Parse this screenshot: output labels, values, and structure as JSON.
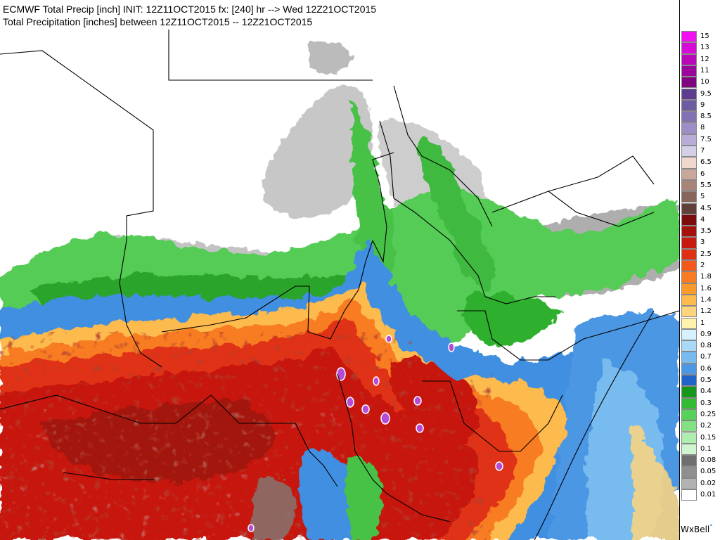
{
  "header": {
    "title_line_1": "ECMWF Total Precip [inch] INIT: 12Z11OCT2015 fx: [240] hr --> Wed 12Z21OCT2015",
    "title_line_2": "Total Precipitation [inches] between 12Z11OCT2015 -- 12Z21OCT2015"
  },
  "map": {
    "region": "East Africa / Horn of Africa",
    "colors": {
      "land_white": "#ffffff",
      "border": "#000000",
      "trace_gray_light": "#d7d7d7",
      "trace_gray": "#a9a9a9",
      "trace_gray_dark": "#7b7b7b",
      "green_light": "#9be39b",
      "green": "#46c846",
      "green_dark": "#1f9a1f",
      "blue_dark": "#1f63c8",
      "blue": "#3f8fe0",
      "blue_light": "#82c0f0",
      "cyan_light": "#c8ecff",
      "yellow_light": "#fff2a8",
      "yellow": "#ffd07a",
      "orange": "#ff9b2a",
      "orange_red": "#f2601e",
      "red": "#db2a14",
      "red_dark": "#b41208",
      "maroon": "#8e1a16",
      "brown_gray": "#8a6f6a",
      "purple": "#b54bd6"
    }
  },
  "legend": {
    "items": [
      {
        "label": "15",
        "color": "#f010f0"
      },
      {
        "label": "13",
        "color": "#d60bd6"
      },
      {
        "label": "12",
        "color": "#b808b8"
      },
      {
        "label": "11",
        "color": "#9a069a"
      },
      {
        "label": "10",
        "color": "#7e057e"
      },
      {
        "label": "9.5",
        "color": "#5c3d8e"
      },
      {
        "label": "9",
        "color": "#6f5ba2"
      },
      {
        "label": "8.5",
        "color": "#8372b3"
      },
      {
        "label": "8",
        "color": "#9d8fc6"
      },
      {
        "label": "7.5",
        "color": "#b9add8"
      },
      {
        "label": "7",
        "color": "#d6cfe9"
      },
      {
        "label": "6.5",
        "color": "#f1d8cf"
      },
      {
        "label": "6",
        "color": "#caa79c"
      },
      {
        "label": "5.5",
        "color": "#a9847a"
      },
      {
        "label": "5",
        "color": "#86655b"
      },
      {
        "label": "4.5",
        "color": "#5f4139"
      },
      {
        "label": "4",
        "color": "#7d0c0c"
      },
      {
        "label": "3.5",
        "color": "#a3120d"
      },
      {
        "label": "3",
        "color": "#c7190f"
      },
      {
        "label": "2.5",
        "color": "#e03014"
      },
      {
        "label": "2",
        "color": "#f25a1c"
      },
      {
        "label": "1.8",
        "color": "#f77b22"
      },
      {
        "label": "1.6",
        "color": "#fb9a2c"
      },
      {
        "label": "1.4",
        "color": "#fdba4d"
      },
      {
        "label": "1.2",
        "color": "#fed57d"
      },
      {
        "label": "1",
        "color": "#fff3ae"
      },
      {
        "label": "0.9",
        "color": "#d6f1ff"
      },
      {
        "label": "0.8",
        "color": "#a8daf8"
      },
      {
        "label": "0.7",
        "color": "#78bcef"
      },
      {
        "label": "0.6",
        "color": "#4c97e3"
      },
      {
        "label": "0.5",
        "color": "#1f65c9"
      },
      {
        "label": "0.4",
        "color": "#17961d"
      },
      {
        "label": "0.3",
        "color": "#33bb33"
      },
      {
        "label": "0.25",
        "color": "#58d158"
      },
      {
        "label": "0.2",
        "color": "#83e183"
      },
      {
        "label": "0.15",
        "color": "#aeeeae"
      },
      {
        "label": "0.1",
        "color": "#cff6cf"
      },
      {
        "label": "0.08",
        "color": "#6e6e6e"
      },
      {
        "label": "0.05",
        "color": "#8f8f8f"
      },
      {
        "label": "0.02",
        "color": "#b2b2b2"
      },
      {
        "label": "0.01",
        "color": "#ffffff"
      }
    ]
  },
  "brand": {
    "label": "WxBell",
    "dot": "°"
  }
}
